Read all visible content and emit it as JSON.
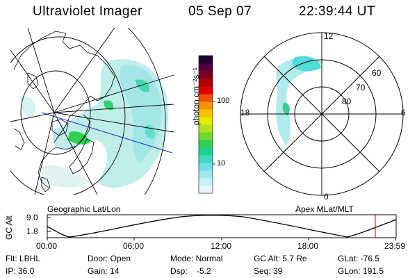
{
  "header": {
    "instrument": "Ultraviolet Imager",
    "date": "05 Sep 07",
    "time": "22:39:44 UT"
  },
  "panels": {
    "left_caption": "Geographic Lat/Lon",
    "right_caption": "Apex MLat/MLT"
  },
  "polar_plot": {
    "lat_labels": [
      "80",
      "70",
      "60"
    ],
    "mlt_labels": {
      "top": "12",
      "left": "18",
      "right": "6",
      "bottom": "0"
    }
  },
  "colorbar": {
    "unit_label": "photon cm⁻²s⁻¹",
    "ticks": [
      "100",
      "10"
    ],
    "colors": [
      "#e8f8fa",
      "#c8f0f4",
      "#a0e8ee",
      "#70e0e4",
      "#40d8c0",
      "#20d090",
      "#30d050",
      "#70d830",
      "#b0e020",
      "#e8e800",
      "#f8c000",
      "#f89000",
      "#f05000",
      "#e00000",
      "#b00000",
      "#800020",
      "#500040",
      "#200030"
    ]
  },
  "altitude_plot": {
    "ylabel": "GC Alt",
    "yticks": [
      "9.0",
      "1.8"
    ],
    "xticks": [
      "00:00",
      "06:00",
      "12:00",
      "18:00",
      "23:59"
    ],
    "marker_time": "22:39"
  },
  "info": {
    "filter": "Flt: LBHL",
    "ip": "IP: 36.0",
    "door": "Door: Open",
    "gain": "Gain: 14",
    "mode": "Mode: Normal",
    "dsp": "Dsp:    -5.2",
    "gc_alt": "GC Alt: 5.7 Re",
    "seq": "Seq: 39",
    "glat": "GLat: -76.5",
    "glon": "GLon: 191.5"
  }
}
